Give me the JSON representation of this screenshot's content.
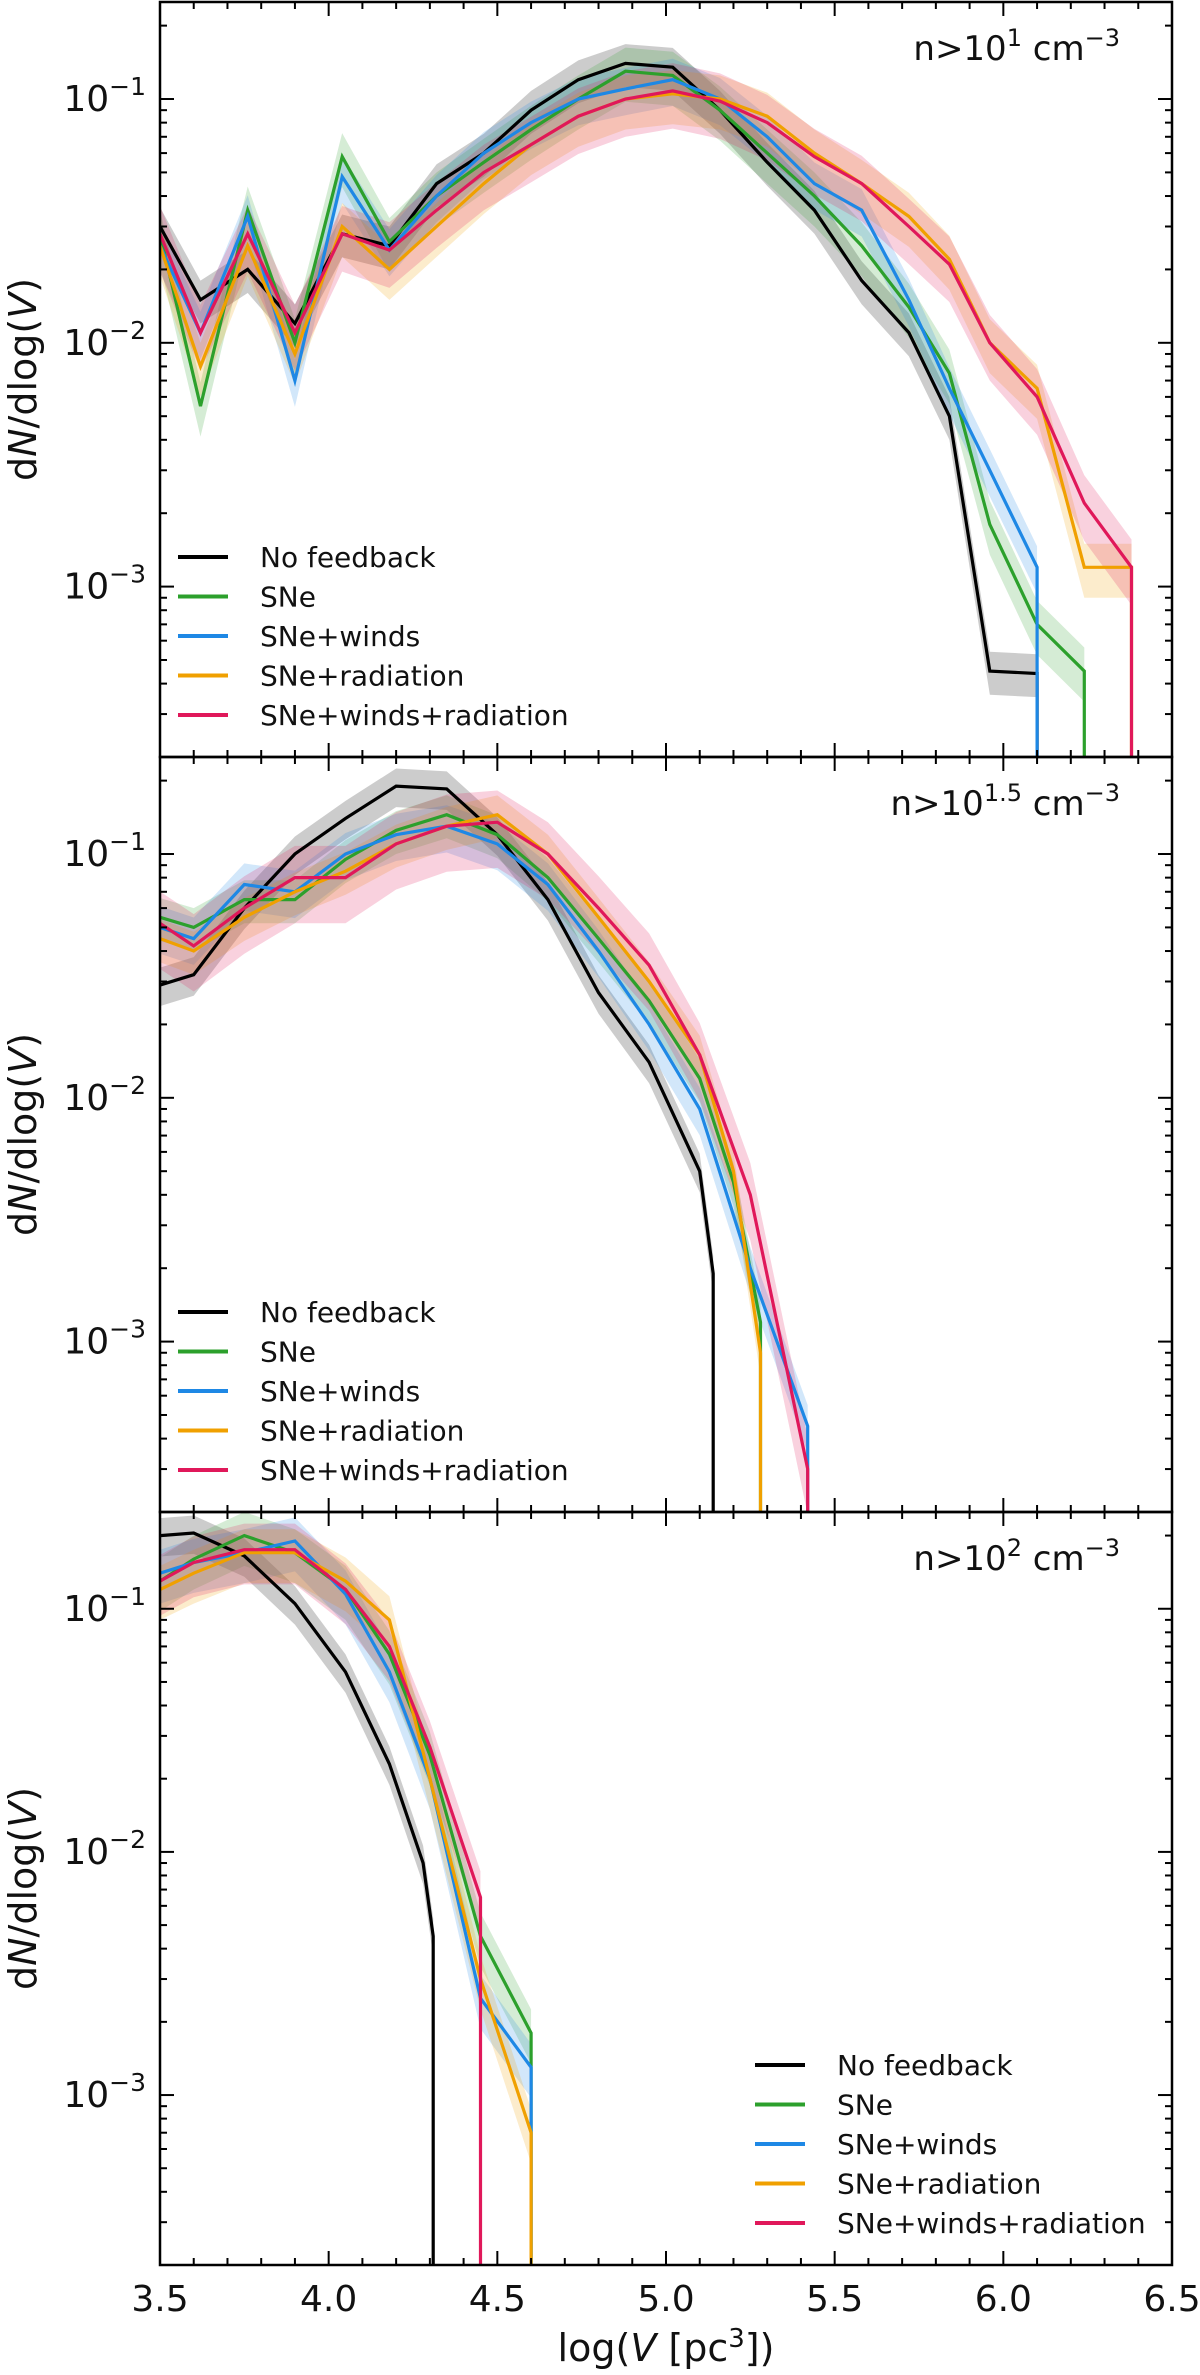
{
  "chart_data": {
    "type": "line",
    "title": "",
    "xlabel": "log(V [pc³])",
    "ylabel": "dN/dlog(V)",
    "xlim": [
      3.5,
      6.5
    ],
    "ylim": [
      0.0002,
      0.25
    ],
    "yscale": "log",
    "xticks": [
      3.5,
      4.0,
      4.5,
      5.0,
      5.5,
      6.0,
      6.5
    ],
    "xtick_labels": [
      "3.5",
      "4.0",
      "4.5",
      "5.0",
      "5.5",
      "6.0",
      "6.5"
    ],
    "yticks": [
      0.001,
      0.01,
      0.1
    ],
    "ytick_labels": [
      {
        "base": "10",
        "exp": "−3"
      },
      {
        "base": "10",
        "exp": "−2"
      },
      {
        "base": "10",
        "exp": "−1"
      }
    ],
    "colors": {
      "No feedback": "#000000",
      "SNe": "#2ca02c",
      "SNe+winds": "#1e88e5",
      "SNe+radiation": "#f0a000",
      "SNe+winds+radiation": "#e0185a"
    },
    "shade_opacity": 0.2,
    "panels": [
      {
        "label": {
          "prefix": "n>10",
          "exp": "1",
          "unit": " cm",
          "unit_exp": "−3"
        },
        "legend_position": "lower-left",
        "series": [
          {
            "name": "No feedback",
            "x": [
              3.5,
              3.62,
              3.76,
              3.9,
              4.04,
              4.18,
              4.32,
              4.46,
              4.6,
              4.74,
              4.88,
              5.02,
              5.16,
              5.3,
              5.44,
              5.58,
              5.72,
              5.84,
              5.96,
              6.1
            ],
            "y": [
              0.03,
              0.015,
              0.02,
              0.012,
              0.028,
              0.025,
              0.045,
              0.06,
              0.09,
              0.12,
              0.14,
              0.135,
              0.09,
              0.055,
              0.035,
              0.018,
              0.011,
              0.005,
              0.00045,
              0.00044
            ],
            "band": 0.2
          },
          {
            "name": "SNe",
            "x": [
              3.5,
              3.62,
              3.76,
              3.9,
              4.04,
              4.18,
              4.32,
              4.46,
              4.6,
              4.74,
              4.88,
              5.02,
              5.16,
              5.3,
              5.44,
              5.58,
              5.72,
              5.84,
              5.96,
              6.1,
              6.24
            ],
            "y": [
              0.028,
              0.0055,
              0.035,
              0.01,
              0.058,
              0.026,
              0.04,
              0.055,
              0.075,
              0.1,
              0.13,
              0.125,
              0.09,
              0.06,
              0.04,
              0.025,
              0.014,
              0.0075,
              0.0018,
              0.0007,
              0.00045
            ],
            "band": 0.25
          },
          {
            "name": "SNe+winds",
            "x": [
              3.5,
              3.62,
              3.76,
              3.9,
              4.04,
              4.18,
              4.32,
              4.46,
              4.6,
              4.74,
              4.88,
              5.02,
              5.16,
              5.3,
              5.44,
              5.58,
              5.72,
              5.84,
              5.96,
              6.1
            ],
            "y": [
              0.025,
              0.011,
              0.033,
              0.007,
              0.048,
              0.024,
              0.04,
              0.06,
              0.08,
              0.1,
              0.11,
              0.12,
              0.1,
              0.07,
              0.045,
              0.035,
              0.015,
              0.0065,
              0.003,
              0.0012
            ],
            "band": 0.22
          },
          {
            "name": "SNe+radiation",
            "x": [
              3.5,
              3.62,
              3.76,
              3.9,
              4.04,
              4.18,
              4.32,
              4.46,
              4.6,
              4.74,
              4.88,
              5.02,
              5.16,
              5.3,
              5.44,
              5.58,
              5.72,
              5.84,
              5.96,
              6.1,
              6.24,
              6.38
            ],
            "y": [
              0.025,
              0.008,
              0.025,
              0.009,
              0.03,
              0.02,
              0.03,
              0.045,
              0.065,
              0.085,
              0.1,
              0.105,
              0.1,
              0.085,
              0.06,
              0.045,
              0.033,
              0.022,
              0.01,
              0.0065,
              0.0012,
              0.0012
            ],
            "band": 0.25
          },
          {
            "name": "SNe+winds+radiation",
            "x": [
              3.5,
              3.62,
              3.76,
              3.9,
              4.04,
              4.18,
              4.32,
              4.46,
              4.6,
              4.74,
              4.88,
              5.02,
              5.16,
              5.3,
              5.44,
              5.58,
              5.72,
              5.84,
              5.96,
              6.1,
              6.24,
              6.38
            ],
            "y": [
              0.028,
              0.011,
              0.028,
              0.011,
              0.028,
              0.024,
              0.035,
              0.05,
              0.065,
              0.085,
              0.1,
              0.108,
              0.098,
              0.08,
              0.058,
              0.045,
              0.03,
              0.021,
              0.01,
              0.006,
              0.0022,
              0.0012
            ],
            "band": 0.3
          }
        ]
      },
      {
        "label": {
          "prefix": "n>10",
          "exp": "1.5",
          "unit": " cm",
          "unit_exp": "−3"
        },
        "legend_position": "lower-left",
        "series": [
          {
            "name": "No feedback",
            "x": [
              3.5,
              3.6,
              3.75,
              3.9,
              4.05,
              4.2,
              4.35,
              4.5,
              4.65,
              4.8,
              4.95,
              5.1,
              5.14
            ],
            "y": [
              0.029,
              0.032,
              0.06,
              0.1,
              0.14,
              0.19,
              0.185,
              0.12,
              0.065,
              0.027,
              0.014,
              0.005,
              0.0019
            ],
            "band": 0.18
          },
          {
            "name": "SNe",
            "x": [
              3.5,
              3.6,
              3.75,
              3.9,
              4.05,
              4.2,
              4.35,
              4.5,
              4.65,
              4.8,
              4.95,
              5.1,
              5.2,
              5.28
            ],
            "y": [
              0.055,
              0.05,
              0.065,
              0.065,
              0.095,
              0.125,
              0.145,
              0.12,
              0.08,
              0.045,
              0.025,
              0.012,
              0.0045,
              0.0012
            ],
            "band": 0.2
          },
          {
            "name": "SNe+winds",
            "x": [
              3.5,
              3.6,
              3.75,
              3.9,
              4.05,
              4.2,
              4.35,
              4.5,
              4.65,
              4.8,
              4.95,
              5.1,
              5.25,
              5.42
            ],
            "y": [
              0.05,
              0.045,
              0.075,
              0.07,
              0.1,
              0.12,
              0.13,
              0.11,
              0.075,
              0.04,
              0.02,
              0.009,
              0.002,
              0.00045
            ],
            "band": 0.22
          },
          {
            "name": "SNe+radiation",
            "x": [
              3.5,
              3.6,
              3.75,
              3.9,
              4.05,
              4.2,
              4.35,
              4.5,
              4.65,
              4.8,
              4.95,
              5.1,
              5.2,
              5.28
            ],
            "y": [
              0.045,
              0.04,
              0.055,
              0.07,
              0.085,
              0.11,
              0.13,
              0.145,
              0.1,
              0.055,
              0.03,
              0.015,
              0.005,
              0.0009
            ],
            "band": 0.2
          },
          {
            "name": "SNe+winds+radiation",
            "x": [
              3.5,
              3.6,
              3.75,
              3.9,
              4.05,
              4.2,
              4.35,
              4.5,
              4.65,
              4.8,
              4.95,
              5.1,
              5.25,
              5.42
            ],
            "y": [
              0.052,
              0.042,
              0.06,
              0.08,
              0.08,
              0.11,
              0.13,
              0.135,
              0.1,
              0.06,
              0.035,
              0.015,
              0.004,
              0.0003
            ],
            "band": 0.35
          }
        ]
      },
      {
        "label": {
          "prefix": "n>10",
          "exp": "2",
          "unit": " cm",
          "unit_exp": "−3"
        },
        "legend_position": "lower-right",
        "series": [
          {
            "name": "No feedback",
            "x": [
              3.5,
              3.6,
              3.75,
              3.9,
              4.05,
              4.18,
              4.28,
              4.31
            ],
            "y": [
              0.2,
              0.205,
              0.165,
              0.105,
              0.055,
              0.023,
              0.009,
              0.0045
            ],
            "band": 0.18
          },
          {
            "name": "SNe",
            "x": [
              3.5,
              3.6,
              3.75,
              3.9,
              4.05,
              4.18,
              4.3,
              4.45,
              4.6
            ],
            "y": [
              0.13,
              0.16,
              0.2,
              0.17,
              0.12,
              0.065,
              0.025,
              0.0045,
              0.0018
            ],
            "band": 0.25
          },
          {
            "name": "SNe+winds",
            "x": [
              3.5,
              3.6,
              3.75,
              3.9,
              4.05,
              4.18,
              4.3,
              4.45,
              4.6
            ],
            "y": [
              0.14,
              0.155,
              0.17,
              0.19,
              0.115,
              0.055,
              0.02,
              0.0025,
              0.0013
            ],
            "band": 0.25
          },
          {
            "name": "SNe+radiation",
            "x": [
              3.5,
              3.6,
              3.75,
              3.9,
              4.05,
              4.18,
              4.3,
              4.45,
              4.6
            ],
            "y": [
              0.12,
              0.14,
              0.17,
              0.17,
              0.13,
              0.09,
              0.02,
              0.003,
              0.0007
            ],
            "band": 0.25
          },
          {
            "name": "SNe+winds+radiation",
            "x": [
              3.5,
              3.6,
              3.75,
              3.9,
              4.05,
              4.18,
              4.3,
              4.45
            ],
            "y": [
              0.13,
              0.155,
              0.175,
              0.175,
              0.12,
              0.07,
              0.027,
              0.0065
            ],
            "band": 0.28
          }
        ]
      }
    ]
  }
}
